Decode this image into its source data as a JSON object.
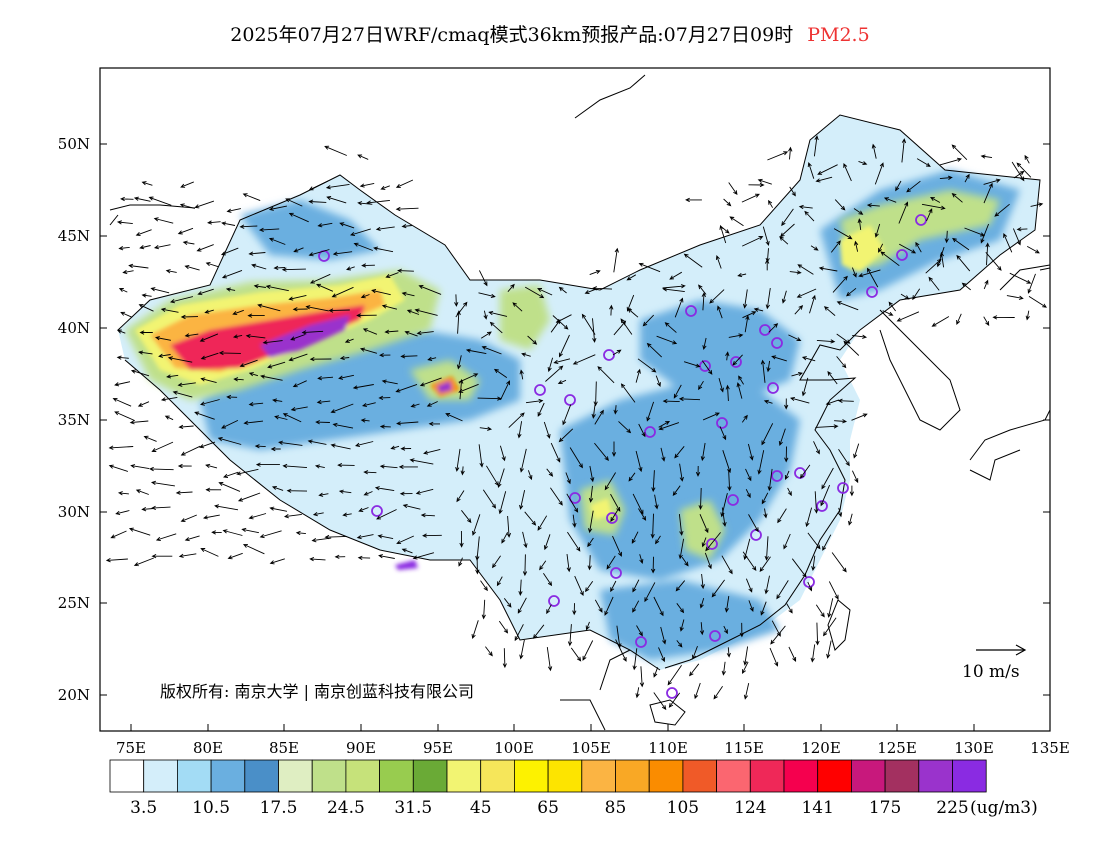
{
  "title": {
    "main": "2025年07月27日WRF/cmaq模式36km预报产品:07月27日09时",
    "pollutant": "PM2.5"
  },
  "map": {
    "lat_labels": [
      "50N",
      "45N",
      "40N",
      "35N",
      "30N",
      "25N",
      "20N"
    ],
    "lon_labels": [
      "75E",
      "80E",
      "85E",
      "90E",
      "95E",
      "100E",
      "105E",
      "110E",
      "115E",
      "120E",
      "125E",
      "130E",
      "135E"
    ],
    "copyright": "版权所有: 南京大学 | 南京创蓝科技有限公司",
    "wind_reference": "10 m/s"
  },
  "colorbar": {
    "labels": [
      "3.5",
      "10.5",
      "17.5",
      "24.5",
      "31.5",
      "45",
      "65",
      "85",
      "105",
      "124",
      "141",
      "175",
      "225"
    ],
    "unit": "(ug/m3)",
    "colors": [
      "#ffffff",
      "#d4eefa",
      "#a3dcf5",
      "#6aafe0",
      "#4a8fc8",
      "#dfeec2",
      "#bfe08a",
      "#c6e27a",
      "#98cc4f",
      "#6aaa36",
      "#f2f472",
      "#f6e65a",
      "#fdf200",
      "#fde400",
      "#fbb443",
      "#f9a825",
      "#fa8c00",
      "#f05a28",
      "#fb6670",
      "#ef2858",
      "#f5004e",
      "#ff0000",
      "#c8187c",
      "#a33060",
      "#9a33cc",
      "#8a2be2"
    ]
  }
}
